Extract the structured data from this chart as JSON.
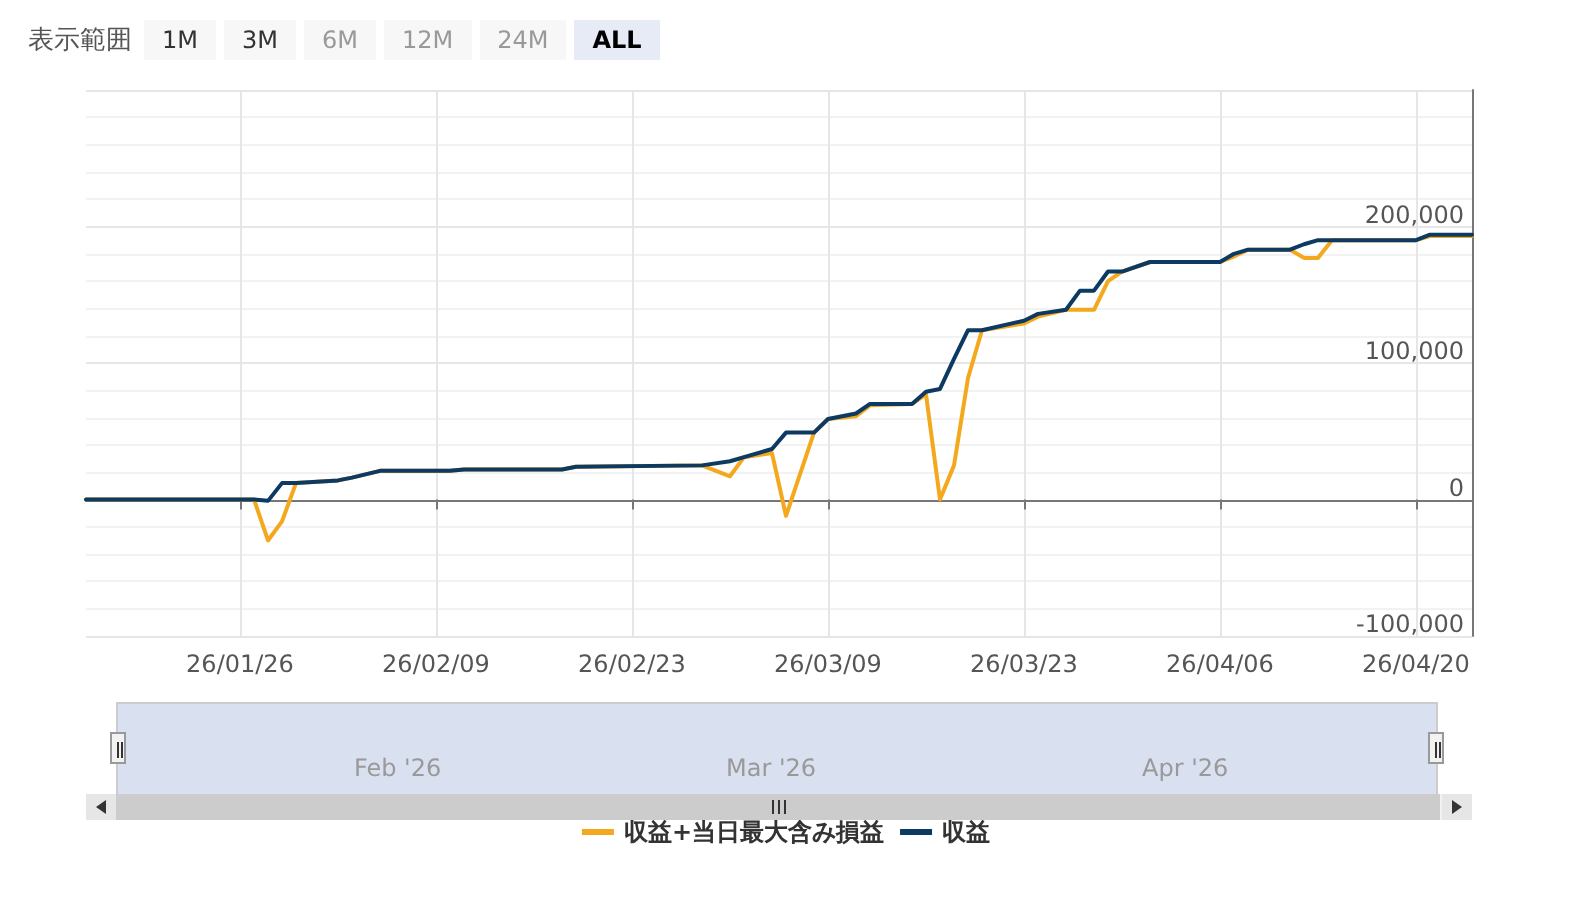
{
  "chart_data": {
    "type": "line",
    "annotations": [
      "表示範囲",
      "1M",
      "3M",
      "6M",
      "12M",
      "24M",
      "ALL",
      "Feb '26",
      "Mar '26",
      "Apr '26"
    ],
    "x": [
      "2026-01-15",
      "2026-01-27",
      "2026-01-28",
      "2026-01-29",
      "2026-01-30",
      "2026-02-02",
      "2026-02-03",
      "2026-02-05",
      "2026-02-10",
      "2026-02-11",
      "2026-02-18",
      "2026-02-19",
      "2026-02-28",
      "2026-03-02",
      "2026-03-03",
      "2026-03-05",
      "2026-03-06",
      "2026-03-08",
      "2026-03-09",
      "2026-03-11",
      "2026-03-12",
      "2026-03-15",
      "2026-03-16",
      "2026-03-17",
      "2026-03-18",
      "2026-03-19",
      "2026-03-20",
      "2026-03-23",
      "2026-03-24",
      "2026-03-26",
      "2026-03-27",
      "2026-03-28",
      "2026-03-29",
      "2026-03-30",
      "2026-04-01",
      "2026-04-06",
      "2026-04-07",
      "2026-04-08",
      "2026-04-11",
      "2026-04-12",
      "2026-04-13",
      "2026-04-14",
      "2026-04-20",
      "2026-04-21",
      "2026-04-24"
    ],
    "series": [
      {
        "name": "収益+当日最大含み損益",
        "color": "#f4a81d",
        "values": [
          0,
          0,
          -30000,
          -16000,
          12000,
          14000,
          16000,
          21000,
          21000,
          22000,
          22000,
          24000,
          25000,
          17000,
          31000,
          34000,
          -12000,
          49000,
          59000,
          61000,
          69000,
          70000,
          77000,
          0,
          25000,
          89000,
          124000,
          129000,
          134000,
          139000,
          139000,
          139000,
          160000,
          167000,
          174000,
          174000,
          178000,
          183000,
          183000,
          177000,
          177000,
          190000,
          190000,
          193000,
          193000
        ]
      },
      {
        "name": "収益",
        "color": "#0d3a62",
        "values": [
          0,
          0,
          -1000,
          12000,
          12000,
          14000,
          16000,
          21000,
          21000,
          22000,
          22000,
          24000,
          25000,
          28000,
          31000,
          37000,
          49000,
          49000,
          59000,
          63000,
          70000,
          70000,
          79000,
          81000,
          103000,
          124000,
          124000,
          131000,
          136000,
          139000,
          153000,
          153000,
          167000,
          167000,
          174000,
          174000,
          180000,
          183000,
          183000,
          187000,
          190000,
          190000,
          190000,
          194000,
          194000
        ]
      }
    ],
    "xlim": [
      "2026-01-15",
      "2026-04-24"
    ],
    "xticks": [
      {
        "value": "2026-01-26",
        "label": "26/01/26"
      },
      {
        "value": "2026-02-09",
        "label": "26/02/09"
      },
      {
        "value": "2026-02-23",
        "label": "26/02/23"
      },
      {
        "value": "2026-03-09",
        "label": "26/03/09"
      },
      {
        "value": "2026-03-23",
        "label": "26/03/23"
      },
      {
        "value": "2026-04-06",
        "label": "26/04/06"
      },
      {
        "value": "2026-04-20",
        "label": "26/04/20"
      }
    ],
    "ylim": [
      -100000,
      300000
    ],
    "yticks": [
      {
        "value": -100000,
        "label": "-100,000"
      },
      0,
      {
        "value": 100000,
        "label": "100,000"
      },
      {
        "value": 200000,
        "label": "200,000"
      },
      {
        "value": 300000,
        "label": null
      }
    ],
    "grid": true,
    "legend": "bottom",
    "marker": "none",
    "line_style": "solid"
  }
}
